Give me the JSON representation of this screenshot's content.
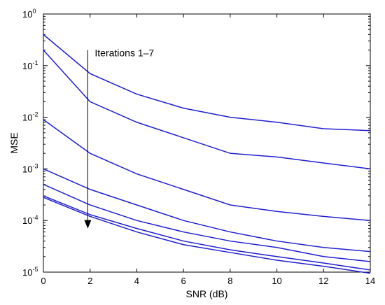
{
  "chart_data": {
    "type": "line",
    "title": "",
    "xlabel": "SNR (dB)",
    "ylabel": "MSE",
    "yscale": "log",
    "xlim": [
      0,
      14
    ],
    "ylim": [
      1e-05,
      1
    ],
    "x_ticks": [
      0,
      2,
      4,
      6,
      8,
      10,
      12,
      14
    ],
    "y_ticks": [
      {
        "base": "10",
        "exp": "0",
        "value": 1
      },
      {
        "base": "10",
        "exp": "-1",
        "value": 0.1
      },
      {
        "base": "10",
        "exp": "-2",
        "value": 0.01
      },
      {
        "base": "10",
        "exp": "-3",
        "value": 0.001
      },
      {
        "base": "10",
        "exp": "-4",
        "value": 0.0001
      },
      {
        "base": "10",
        "exp": "-5",
        "value": 1e-05
      }
    ],
    "grid": false,
    "line_color": "#1f1fd0",
    "x": [
      0,
      2,
      4,
      6,
      8,
      10,
      12,
      14
    ],
    "series": [
      {
        "values": [
          0.4,
          0.07,
          0.028,
          0.015,
          0.01,
          0.008,
          0.006,
          0.0055
        ]
      },
      {
        "values": [
          0.2,
          0.02,
          0.008,
          0.004,
          0.002,
          0.0017,
          0.0013,
          0.001
        ]
      },
      {
        "values": [
          0.009,
          0.002,
          0.0008,
          0.0004,
          0.0002,
          0.00015,
          0.00012,
          0.0001
        ]
      },
      {
        "values": [
          0.001,
          0.0004,
          0.0002,
          0.0001,
          6e-05,
          4e-05,
          3e-05,
          2.5e-05
        ]
      },
      {
        "values": [
          0.0005,
          0.0002,
          0.0001,
          6e-05,
          4e-05,
          3e-05,
          2e-05,
          1.6e-05
        ]
      },
      {
        "values": [
          0.0003,
          0.00013,
          7e-05,
          4e-05,
          2.7e-05,
          2e-05,
          1.5e-05,
          1.1e-05
        ]
      },
      {
        "values": [
          0.00028,
          0.00012,
          6e-05,
          3.4e-05,
          2.4e-05,
          1.7e-05,
          1.3e-05,
          9.5e-06
        ]
      }
    ],
    "annotation": {
      "text": "Iterations 1–7",
      "arrow_x": 1.9,
      "arrow_y_start": 0.2,
      "arrow_y_end": 7e-05
    }
  }
}
